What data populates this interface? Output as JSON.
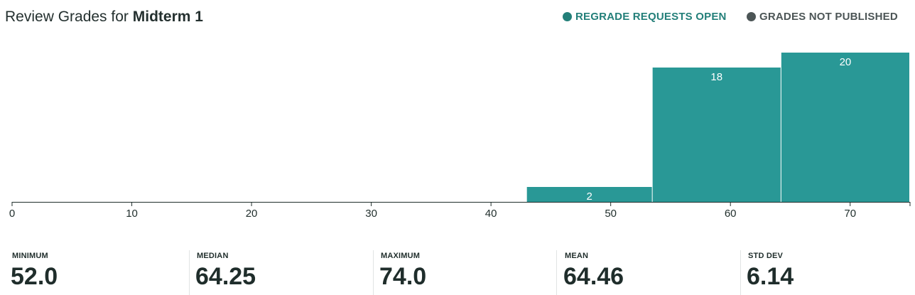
{
  "header": {
    "title_prefix": "Review Grades for",
    "title_assignment": "Midterm 1"
  },
  "status": {
    "regrade": {
      "label": "REGRADE REQUESTS OPEN",
      "color": "#237f79"
    },
    "publish": {
      "label": "GRADES NOT PUBLISHED",
      "color": "#4c5556"
    }
  },
  "colors": {
    "bar": "#299896",
    "axis": "#1f2d2b"
  },
  "chart_data": {
    "type": "bar",
    "bins": [
      {
        "from": 43,
        "to": 53.5,
        "value": 2
      },
      {
        "from": 53.5,
        "to": 64.25,
        "value": 18
      },
      {
        "from": 64.25,
        "to": 75,
        "value": 20
      }
    ],
    "xlim": [
      0,
      75
    ],
    "ylim": [
      0,
      20
    ],
    "xticks": [
      0,
      10,
      20,
      30,
      40,
      50,
      60,
      70
    ]
  },
  "stats": [
    {
      "label": "MINIMUM",
      "value": "52.0"
    },
    {
      "label": "MEDIAN",
      "value": "64.25"
    },
    {
      "label": "MAXIMUM",
      "value": "74.0"
    },
    {
      "label": "MEAN",
      "value": "64.46"
    },
    {
      "label": "STD DEV",
      "value": "6.14"
    }
  ]
}
